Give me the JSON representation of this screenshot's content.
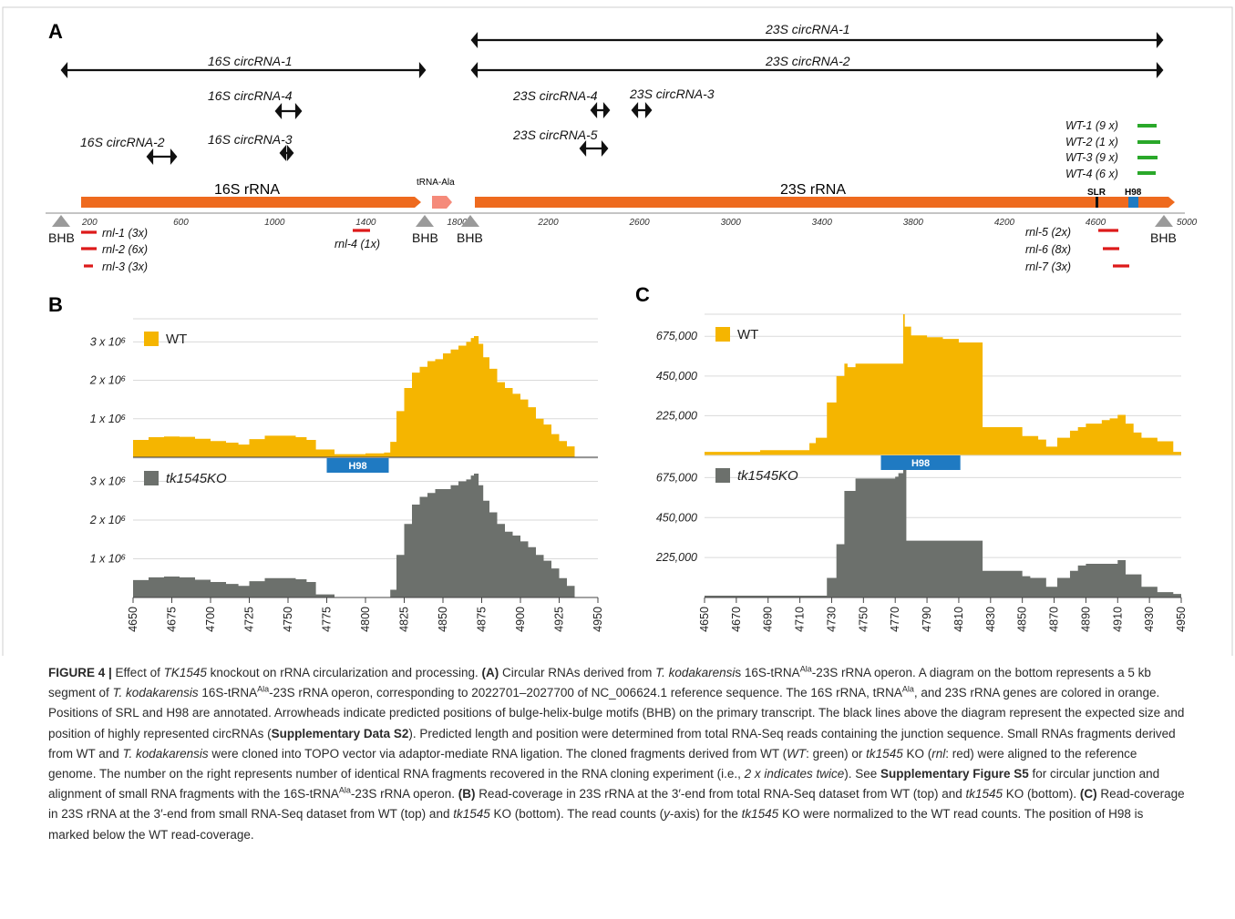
{
  "panel_labels": {
    "a": "A",
    "b": "B",
    "c": "C"
  },
  "colors": {
    "orange": "#ee6a1e",
    "wt": "#f5b500",
    "ko": "#6c706c",
    "black": "#111111",
    "green": "#2aa82a",
    "red": "#dd1a1a",
    "blue": "#1f7ac2",
    "salmon": "#f58a7a",
    "gray": "#9a9a9a"
  },
  "panel_a": {
    "circ_23s_1": "23S circRNA-1",
    "circ_23s_2": "23S circRNA-2",
    "circ_16s_1": "16S circRNA-1",
    "circ_16s_4": "16S circRNA-4",
    "circ_16s_2": "16S circRNA-2",
    "circ_16s_3": "16S circRNA-3",
    "circ_23s_4": "23S circRNA-4",
    "circ_23s_3": "23S circRNA-3",
    "circ_23s_5": "23S circRNA-5",
    "wt_fragments": [
      "WT-1 (9 x)",
      "WT-2 (1 x)",
      "WT-3 (9 x)",
      "WT-4 (6 x)"
    ],
    "gene_16s": "16S rRNA",
    "gene_trna": "tRNA-Ala",
    "gene_23s": "23S rRNA",
    "slr": "SLR",
    "h98": "H98",
    "bhb": "BHB",
    "axis_ticks": [
      "200",
      "600",
      "1000",
      "1400",
      "1800",
      "2200",
      "2600",
      "3000",
      "3400",
      "3800",
      "4200",
      "4600",
      "5000"
    ],
    "rnl_left": [
      "rnl-1 (3x)",
      "rnl-2 (6x)",
      "rnl-3 (3x)"
    ],
    "rnl_4": "rnl-4 (1x)",
    "rnl_right": [
      "rnl-5 (2x)",
      "rnl-6 (8x)",
      "rnl-7 (3x)"
    ]
  },
  "chart_data": [
    {
      "type": "area",
      "panel": "B",
      "x_ticks": [
        4650,
        4675,
        4700,
        4725,
        4750,
        4775,
        4800,
        4825,
        4850,
        4875,
        4900,
        4925,
        4950
      ],
      "xlim": [
        4650,
        4950
      ],
      "ylim": [
        0,
        3600000
      ],
      "y_tick_values": [
        1000000,
        2000000,
        3000000
      ],
      "y_tick_labels": [
        "1 x 10⁶",
        "2 x 10⁶",
        "3 x 10⁶"
      ],
      "h98_label": "H98",
      "series": [
        {
          "name": "WT",
          "x": [
            4650,
            4660,
            4670,
            4680,
            4690,
            4700,
            4710,
            4718,
            4725,
            4735,
            4745,
            4755,
            4762,
            4768,
            4780,
            4800,
            4812,
            4816,
            4820,
            4825,
            4830,
            4835,
            4840,
            4845,
            4850,
            4855,
            4860,
            4865,
            4868,
            4870,
            4873,
            4876,
            4880,
            4885,
            4890,
            4895,
            4900,
            4905,
            4910,
            4915,
            4920,
            4925,
            4930,
            4935
          ],
          "y": [
            450000,
            520000,
            540000,
            530000,
            480000,
            420000,
            380000,
            330000,
            470000,
            560000,
            560000,
            520000,
            450000,
            200000,
            80000,
            100000,
            120000,
            400000,
            1200000,
            1800000,
            2200000,
            2350000,
            2500000,
            2550000,
            2700000,
            2800000,
            2900000,
            3000000,
            3100000,
            3150000,
            2950000,
            2600000,
            2300000,
            1950000,
            1800000,
            1650000,
            1500000,
            1300000,
            1000000,
            850000,
            600000,
            420000,
            280000,
            0
          ]
        },
        {
          "name": "tk1545KO",
          "x": [
            4650,
            4660,
            4670,
            4680,
            4690,
            4700,
            4710,
            4718,
            4725,
            4735,
            4745,
            4755,
            4762,
            4768,
            4780,
            4800,
            4812,
            4816,
            4820,
            4825,
            4830,
            4835,
            4840,
            4845,
            4850,
            4855,
            4860,
            4865,
            4868,
            4870,
            4873,
            4876,
            4880,
            4885,
            4890,
            4895,
            4900,
            4905,
            4910,
            4915,
            4920,
            4925,
            4930,
            4935
          ],
          "y": [
            450000,
            520000,
            540000,
            520000,
            460000,
            400000,
            350000,
            300000,
            420000,
            500000,
            500000,
            470000,
            400000,
            80000,
            0,
            0,
            0,
            200000,
            1100000,
            1900000,
            2400000,
            2600000,
            2700000,
            2800000,
            2800000,
            2900000,
            3000000,
            3050000,
            3150000,
            3200000,
            2900000,
            2500000,
            2200000,
            1900000,
            1700000,
            1600000,
            1450000,
            1300000,
            1100000,
            950000,
            750000,
            500000,
            300000,
            0
          ]
        }
      ]
    },
    {
      "type": "area",
      "panel": "C",
      "x_ticks": [
        4650,
        4670,
        4690,
        4710,
        4730,
        4750,
        4770,
        4790,
        4810,
        4830,
        4850,
        4870,
        4890,
        4910,
        4930,
        4950
      ],
      "xlim": [
        4650,
        4950
      ],
      "ylim": [
        0,
        800000
      ],
      "y_tick_values": [
        225000,
        450000,
        675000
      ],
      "y_tick_labels": [
        "225,000",
        "450,000",
        "675,000"
      ],
      "h98_label": "H98",
      "series": [
        {
          "name": "WT",
          "x": [
            4650,
            4665,
            4685,
            4693,
            4700,
            4716,
            4720,
            4727,
            4733,
            4738,
            4740,
            4745,
            4774,
            4775,
            4776,
            4780,
            4790,
            4800,
            4810,
            4815,
            4825,
            4832,
            4845,
            4850,
            4855,
            4860,
            4865,
            4872,
            4880,
            4885,
            4890,
            4900,
            4905,
            4910,
            4915,
            4920,
            4925,
            4935,
            4945,
            4950
          ],
          "y": [
            20000,
            20000,
            30000,
            30000,
            30000,
            70000,
            100000,
            300000,
            450000,
            520000,
            500000,
            520000,
            520000,
            800000,
            730000,
            680000,
            670000,
            660000,
            640000,
            640000,
            160000,
            160000,
            160000,
            110000,
            110000,
            90000,
            50000,
            100000,
            140000,
            160000,
            180000,
            200000,
            210000,
            230000,
            180000,
            130000,
            100000,
            80000,
            20000,
            20000
          ]
        },
        {
          "name": "tk1545KO",
          "x": [
            4650,
            4665,
            4685,
            4700,
            4716,
            4720,
            4727,
            4733,
            4738,
            4745,
            4770,
            4772,
            4775,
            4777,
            4790,
            4805,
            4815,
            4825,
            4832,
            4845,
            4850,
            4855,
            4865,
            4872,
            4880,
            4885,
            4890,
            4900,
            4905,
            4910,
            4915,
            4925,
            4935,
            4945,
            4950
          ],
          "y": [
            10000,
            10000,
            10000,
            10000,
            10000,
            10000,
            110000,
            300000,
            600000,
            670000,
            680000,
            700000,
            790000,
            320000,
            320000,
            320000,
            320000,
            150000,
            150000,
            150000,
            120000,
            110000,
            60000,
            110000,
            150000,
            180000,
            190000,
            190000,
            190000,
            210000,
            130000,
            60000,
            30000,
            20000,
            20000
          ]
        }
      ]
    }
  ],
  "caption": {
    "fig": "FIGURE 4 |",
    "s1": " Effect of ",
    "s1i": "TK1545",
    "s2": " knockout on rRNA circularization and processing. ",
    "A": "(A)",
    "s3": " Circular RNAs derived from ",
    "s3i": "T. kodakarensi",
    "s4": "s 16S-tRNA",
    "sup1": "Ala",
    "s5": "-23S rRNA operon. A diagram on the bottom represents a 5 kb segment of ",
    "s5i": "T. kodakarensis",
    "s6": " 16S-tRNA",
    "sup2": "Ala",
    "s7": "-23S rRNA operon, corresponding to 2022701–2027700 of NC_006624.1 reference sequence. The 16S rRNA, tRNA",
    "sup3": "Ala",
    "s8": ", and 23S rRNA genes are colored in orange. Positions of SRL and H98 are annotated. Arrowheads indicate predicted positions of bulge-helix-bulge motifs (BHB) on the primary transcript. The black lines above the diagram represent the expected size and position of highly represented circRNAs (",
    "s8b": "Supplementary Data S2",
    "s9": "). Predicted length and position were determined from total RNA-Seq reads containing the junction sequence. Small RNAs fragments derived from WT and ",
    "s9i": "T. kodakarensis",
    "s10": " were cloned into TOPO vector via adaptor-mediate RNA ligation. The cloned fragments derived from WT (",
    "s10i": "WT",
    "s11": ": green) or ",
    "s11i": "tk1545",
    "s12": " KO (",
    "s12i": "rnl",
    "s13": ": red) were aligned to the reference genome. The number on the right represents number of identical RNA fragments recovered in the RNA cloning experiment (i.e., ",
    "s13i": "2 x indicates twice",
    "s14": "). See ",
    "s14b": "Supplementary Figure S5",
    "s15": " for circular junction and alignment of small RNA fragments with the 16S-tRNA",
    "sup4": "Ala",
    "s16": "-23S rRNA operon. ",
    "B": "(B)",
    "s17": " Read-coverage in 23S rRNA at the 3′-end from total RNA-Seq dataset from WT (top) and ",
    "s17i": "tk1545",
    "s18": " KO (bottom). ",
    "C": "(C)",
    "s19": " Read-coverage in 23S rRNA at the 3′-end from small RNA-Seq dataset from WT (top) and ",
    "s19i": "tk1545",
    "s20": " KO (bottom). The read counts (",
    "s20i": "y",
    "s21": "-axis) for the ",
    "s21i": "tk1545",
    "s22": " KO were normalized to the WT read counts. The position of H98 is marked below the WT read-coverage."
  }
}
